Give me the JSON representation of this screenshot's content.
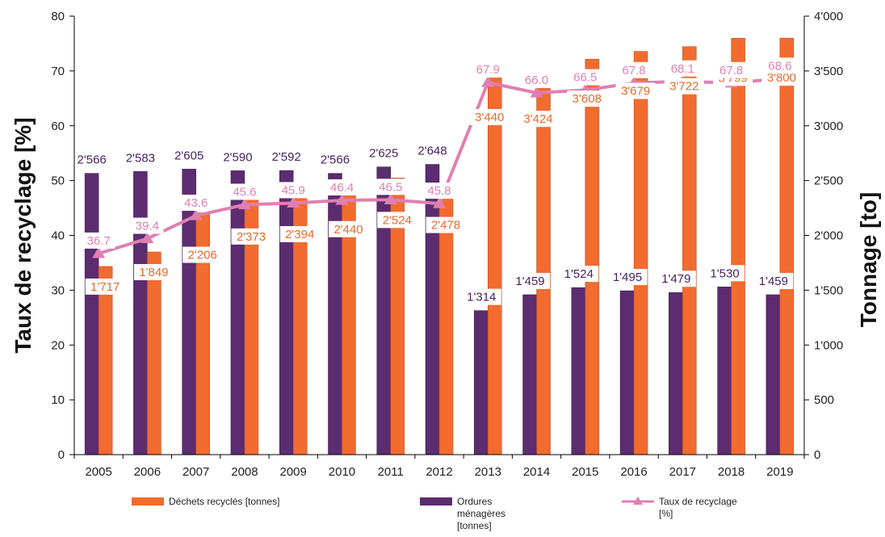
{
  "chart_data": {
    "type": "bar",
    "categories": [
      "2005",
      "2006",
      "2007",
      "2008",
      "2009",
      "2010",
      "2011",
      "2012",
      "2013",
      "2014",
      "2015",
      "2016",
      "2017",
      "2018",
      "2019"
    ],
    "series": [
      {
        "name": "Ordures ménagères [tonnes]",
        "type": "bar",
        "axis": "right",
        "color": "#5b2c6f",
        "values": [
          2566,
          2583,
          2605,
          2590,
          2592,
          2566,
          2625,
          2648,
          1314,
          1459,
          1524,
          1495,
          1479,
          1530,
          1459
        ],
        "labels": [
          "2'566",
          "2'583",
          "2'605",
          "2'590",
          "2'592",
          "2'566",
          "2'625",
          "2'648",
          "1'314",
          "1'459",
          "1'524",
          "1'495",
          "1'479",
          "1'530",
          "1'459"
        ]
      },
      {
        "name": "Déchets recyclés [tonnes]",
        "type": "bar",
        "axis": "right",
        "color": "#f26b2f",
        "values": [
          1717,
          1849,
          2206,
          2373,
          2394,
          2440,
          2524,
          2478,
          3440,
          3424,
          3608,
          3679,
          3722,
          3799,
          3800
        ],
        "labels": [
          "1'717",
          "1'849",
          "2'206",
          "2'373",
          "2'394",
          "2'440",
          "2'524",
          "2'478",
          "3'440",
          "3'424",
          "3'608",
          "3'679",
          "3'722",
          "3'799",
          "3'800"
        ]
      },
      {
        "name": "Taux de recyclage [%]",
        "type": "line",
        "axis": "left",
        "color": "#e07fb2",
        "values": [
          36.7,
          39.4,
          43.6,
          45.6,
          45.9,
          46.4,
          46.5,
          45.8,
          67.9,
          66.0,
          66.5,
          67.8,
          68.1,
          67.8,
          68.6
        ],
        "labels": [
          "36.7",
          "39.4",
          "43.6",
          "45.6",
          "45.9",
          "46.4",
          "46.5",
          "45.8",
          "67.9",
          "66.0",
          "66.5",
          "67.8",
          "68.1",
          "67.8",
          "68.6"
        ]
      }
    ],
    "y_left": {
      "label": "Taux de recyclage [%]",
      "lim": [
        0,
        80
      ],
      "ticks": [
        0,
        10,
        20,
        30,
        40,
        50,
        60,
        70,
        80
      ],
      "tick_labels": [
        "0",
        "10",
        "20",
        "30",
        "40",
        "50",
        "60",
        "70",
        "80"
      ]
    },
    "y_right": {
      "label": "Tonnage [to]",
      "lim": [
        0,
        4000
      ],
      "ticks": [
        0,
        500,
        1000,
        1500,
        2000,
        2500,
        3000,
        3500,
        4000
      ],
      "tick_labels": [
        "0",
        "500",
        "1'000",
        "1'500",
        "2'000",
        "2'500",
        "3'000",
        "3'500",
        "4'000"
      ]
    },
    "grid": false,
    "legend_position": "bottom",
    "legend": [
      {
        "series": "Déchets recyclés [tonnes]",
        "lines": [
          "Déchets recyclés [tonnes]"
        ]
      },
      {
        "series": "Ordures ménagères [tonnes]",
        "lines": [
          "Ordures",
          "ménagères",
          "[tonnes]"
        ]
      },
      {
        "series": "Taux de recyclage [%]",
        "lines": [
          "Taux de recyclage",
          "[%]"
        ]
      }
    ]
  }
}
